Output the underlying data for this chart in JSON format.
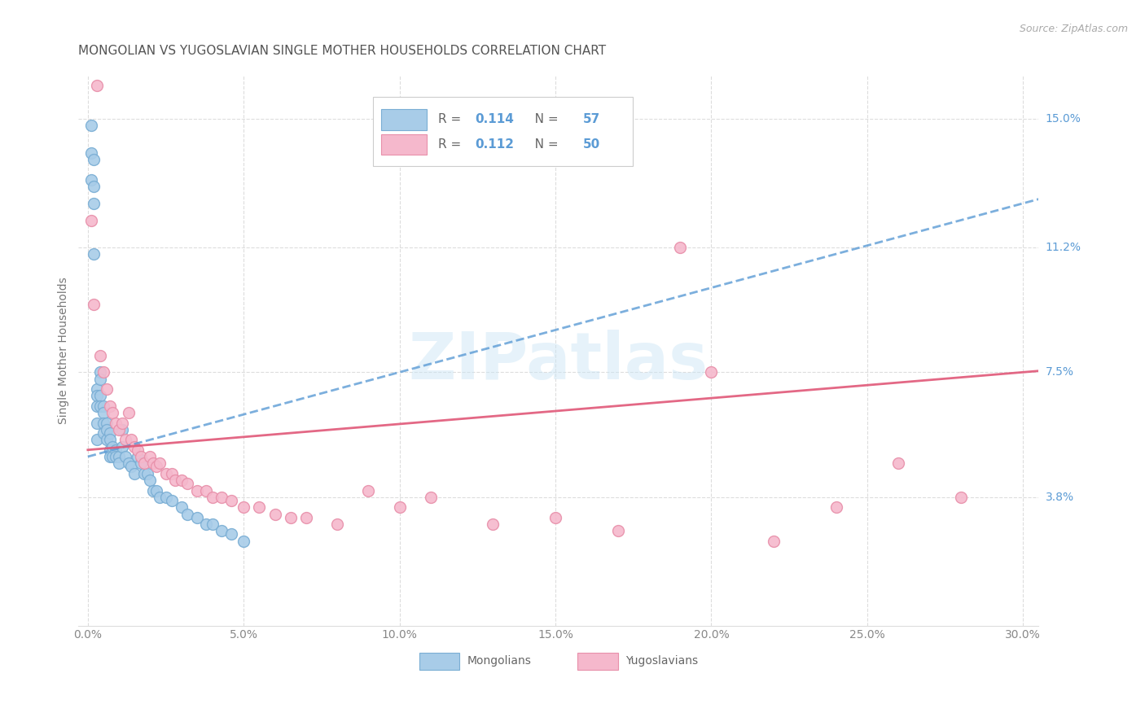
{
  "title": "MONGOLIAN VS YUGOSLAVIAN SINGLE MOTHER HOUSEHOLDS CORRELATION CHART",
  "source": "Source: ZipAtlas.com",
  "ylabel": "Single Mother Households",
  "xlabel_ticks": [
    "0.0%",
    "5.0%",
    "10.0%",
    "15.0%",
    "20.0%",
    "25.0%",
    "30.0%"
  ],
  "xlabel_vals": [
    0.0,
    0.05,
    0.1,
    0.15,
    0.2,
    0.25,
    0.3
  ],
  "ylabel_ticks": [
    "3.8%",
    "7.5%",
    "11.2%",
    "15.0%"
  ],
  "ylabel_vals": [
    0.038,
    0.075,
    0.112,
    0.15
  ],
  "ylim": [
    0.0,
    0.163
  ],
  "xlim": [
    -0.003,
    0.305
  ],
  "mongolian_R": 0.114,
  "mongolian_N": 57,
  "yugoslavian_R": 0.112,
  "yugoslavian_N": 50,
  "mongolian_color": "#a8cce8",
  "mongolian_edge_color": "#7aaed4",
  "yugoslavian_color": "#f5b8cc",
  "yugoslavian_edge_color": "#e890aa",
  "mongolian_line_color": "#5b9bd5",
  "yugoslavian_line_color": "#e05878",
  "legend_mongolians": "Mongolians",
  "legend_yugoslavians": "Yugoslavians",
  "watermark": "ZIPatlas",
  "background_color": "#ffffff",
  "grid_color": "#dddddd",
  "tick_label_color": "#888888",
  "right_tick_color": "#5b9bd5",
  "title_color": "#555555",
  "source_color": "#aaaaaa",
  "mongolian_x": [
    0.001,
    0.001,
    0.001,
    0.002,
    0.002,
    0.002,
    0.002,
    0.003,
    0.003,
    0.003,
    0.003,
    0.003,
    0.004,
    0.004,
    0.004,
    0.004,
    0.005,
    0.005,
    0.005,
    0.005,
    0.006,
    0.006,
    0.006,
    0.007,
    0.007,
    0.007,
    0.007,
    0.008,
    0.008,
    0.009,
    0.009,
    0.01,
    0.01,
    0.011,
    0.011,
    0.012,
    0.013,
    0.014,
    0.015,
    0.016,
    0.017,
    0.018,
    0.019,
    0.02,
    0.021,
    0.022,
    0.023,
    0.025,
    0.027,
    0.03,
    0.032,
    0.035,
    0.038,
    0.04,
    0.043,
    0.046,
    0.05
  ],
  "mongolian_y": [
    0.148,
    0.14,
    0.132,
    0.138,
    0.13,
    0.125,
    0.11,
    0.07,
    0.068,
    0.065,
    0.06,
    0.055,
    0.075,
    0.073,
    0.068,
    0.065,
    0.065,
    0.063,
    0.06,
    0.057,
    0.06,
    0.058,
    0.055,
    0.057,
    0.055,
    0.052,
    0.05,
    0.053,
    0.05,
    0.052,
    0.05,
    0.05,
    0.048,
    0.058,
    0.053,
    0.05,
    0.048,
    0.047,
    0.045,
    0.05,
    0.048,
    0.045,
    0.045,
    0.043,
    0.04,
    0.04,
    0.038,
    0.038,
    0.037,
    0.035,
    0.033,
    0.032,
    0.03,
    0.03,
    0.028,
    0.027,
    0.025
  ],
  "yugoslavian_x": [
    0.001,
    0.002,
    0.003,
    0.004,
    0.005,
    0.006,
    0.007,
    0.008,
    0.009,
    0.01,
    0.011,
    0.012,
    0.013,
    0.014,
    0.015,
    0.016,
    0.017,
    0.018,
    0.02,
    0.021,
    0.022,
    0.023,
    0.025,
    0.027,
    0.028,
    0.03,
    0.032,
    0.035,
    0.038,
    0.04,
    0.043,
    0.046,
    0.05,
    0.055,
    0.06,
    0.065,
    0.07,
    0.08,
    0.09,
    0.1,
    0.11,
    0.13,
    0.15,
    0.17,
    0.19,
    0.2,
    0.22,
    0.24,
    0.26,
    0.28
  ],
  "yugoslavian_y": [
    0.12,
    0.095,
    0.16,
    0.08,
    0.075,
    0.07,
    0.065,
    0.063,
    0.06,
    0.058,
    0.06,
    0.055,
    0.063,
    0.055,
    0.053,
    0.052,
    0.05,
    0.048,
    0.05,
    0.048,
    0.047,
    0.048,
    0.045,
    0.045,
    0.043,
    0.043,
    0.042,
    0.04,
    0.04,
    0.038,
    0.038,
    0.037,
    0.035,
    0.035,
    0.033,
    0.032,
    0.032,
    0.03,
    0.04,
    0.035,
    0.038,
    0.03,
    0.032,
    0.028,
    0.112,
    0.075,
    0.025,
    0.035,
    0.048,
    0.038
  ]
}
